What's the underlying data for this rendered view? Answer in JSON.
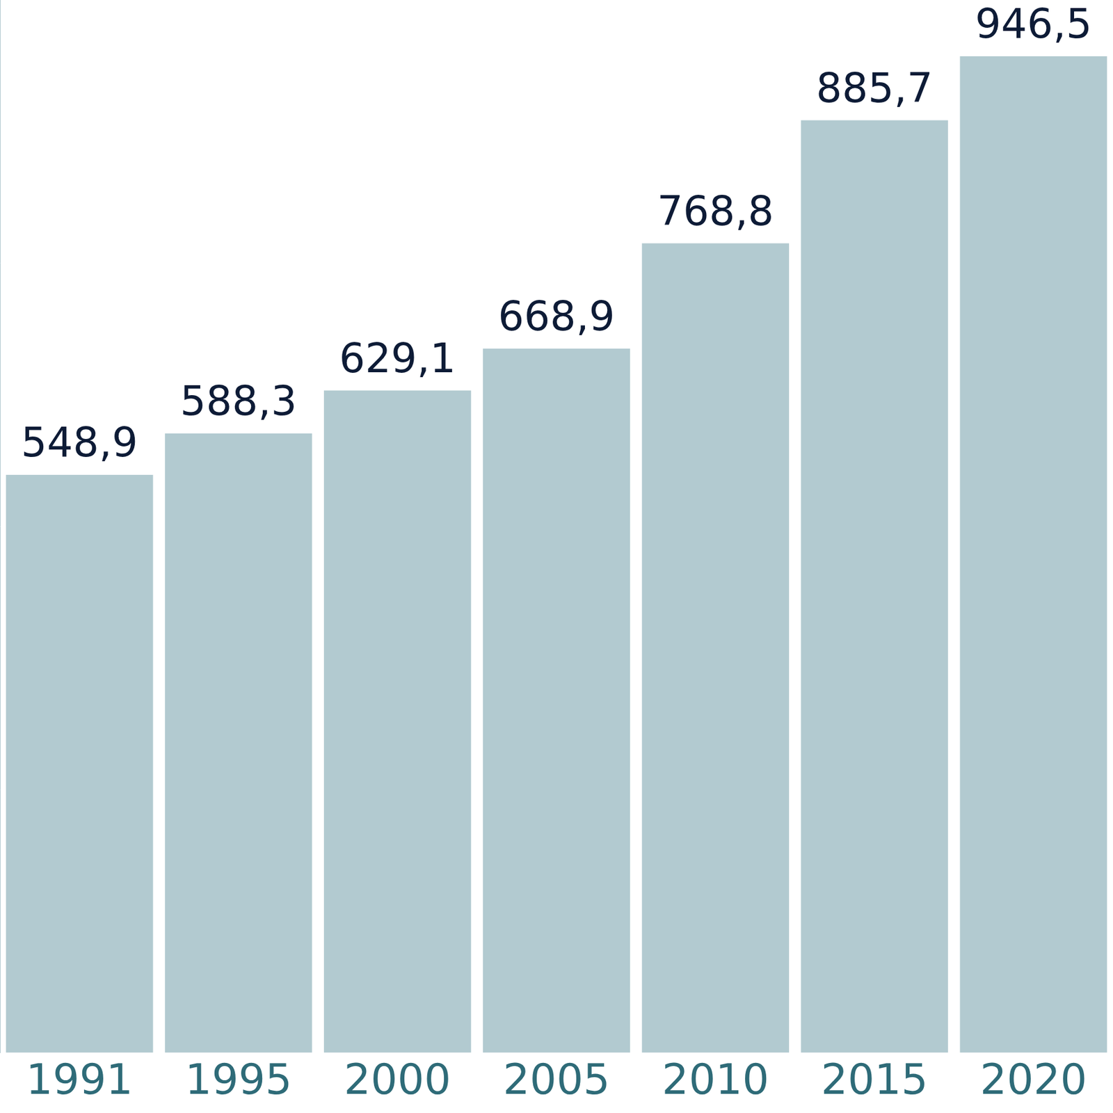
{
  "chart_data": {
    "type": "bar",
    "categories": [
      "1991",
      "1995",
      "2000",
      "2005",
      "2010",
      "2015",
      "2020"
    ],
    "values": [
      548.9,
      588.3,
      629.1,
      668.9,
      768.8,
      885.7,
      946.5
    ],
    "value_labels": [
      "548,9",
      "588,3",
      "629,1",
      "668,9",
      "768,8",
      "885,7",
      "946,5"
    ],
    "data_labels": true,
    "color": "#b2cad0",
    "ylim": [
      0,
      1000
    ],
    "grid": false,
    "tick_labels": "x"
  }
}
